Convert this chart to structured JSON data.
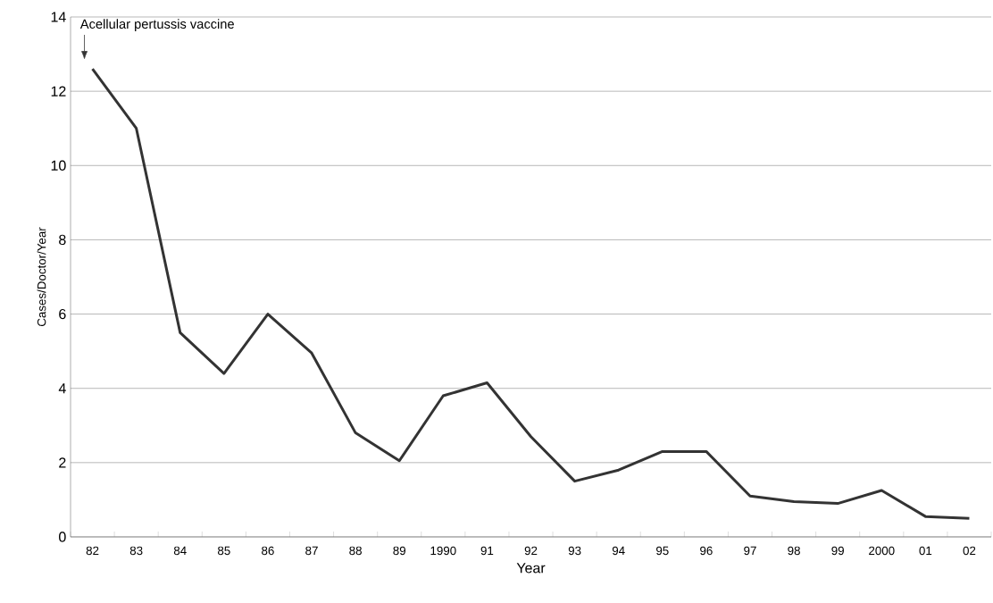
{
  "chart_data": {
    "type": "line",
    "xlabel": "Year",
    "ylabel": "Cases/Doctor/Year",
    "categories": [
      "82",
      "83",
      "84",
      "85",
      "86",
      "87",
      "88",
      "89",
      "1990",
      "91",
      "92",
      "93",
      "94",
      "95",
      "96",
      "97",
      "98",
      "99",
      "2000",
      "01",
      "02"
    ],
    "values": [
      12.6,
      11.0,
      5.5,
      4.4,
      6.0,
      4.95,
      2.8,
      2.05,
      3.8,
      4.15,
      2.7,
      1.5,
      1.8,
      2.3,
      2.3,
      1.1,
      0.95,
      0.9,
      1.25,
      0.55,
      0.5
    ],
    "color": "#333333",
    "ylim": [
      0,
      14
    ],
    "yticks": [
      0,
      2,
      4,
      6,
      8,
      10,
      12,
      14
    ],
    "grid": "y",
    "marker": "none",
    "line_style": "solid",
    "annotations": [
      {
        "text": "Acellular pertussis vaccine",
        "x": "82",
        "y": 12.6
      }
    ]
  }
}
